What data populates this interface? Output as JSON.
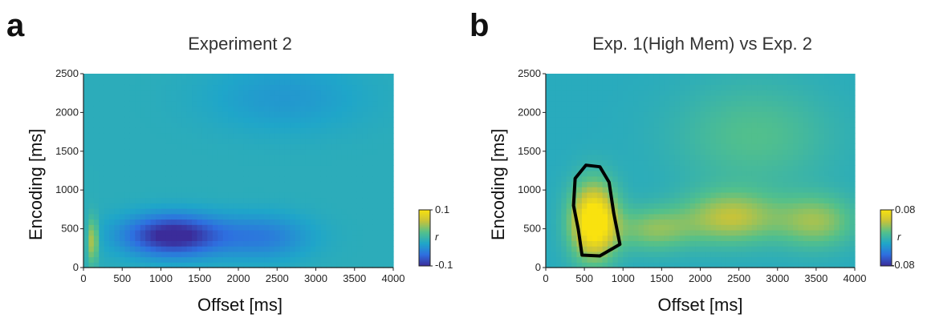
{
  "panels": [
    {
      "letter": "a",
      "title": "Experiment 2",
      "xlabel": "Offset [ms]",
      "ylabel": "Encoding [ms]",
      "colorbar": {
        "label": "r",
        "max": "0.1",
        "min": "-0.1"
      }
    },
    {
      "letter": "b",
      "title": "Exp. 1(High Mem) vs Exp. 2",
      "xlabel": "Offset [ms]",
      "ylabel": "Encoding [ms]",
      "colorbar": {
        "label": "r",
        "max": "0.08",
        "min": "-0.08"
      }
    }
  ],
  "chart_data": [
    {
      "type": "heatmap",
      "title": "Experiment 2",
      "xlabel": "Offset [ms]",
      "ylabel": "Encoding [ms]",
      "x_ticks": [
        0,
        500,
        1000,
        1500,
        2000,
        2500,
        3000,
        3500,
        4000
      ],
      "y_ticks": [
        0,
        500,
        1000,
        1500,
        2000,
        2500
      ],
      "xlim": [
        0,
        4000
      ],
      "ylim": [
        0,
        2500
      ],
      "color_range": [
        -0.1,
        0.1
      ],
      "colorbar_label": "r",
      "colormap": [
        "#3b2c9a",
        "#2e6fe0",
        "#1fa6c9",
        "#53c08b",
        "#c7c33a",
        "#f9e20f"
      ],
      "background_value": -0.01,
      "blobs": [
        {
          "x": 1150,
          "y": 420,
          "sx": 550,
          "sy": 230,
          "value": -0.11
        },
        {
          "x": 2300,
          "y": 400,
          "sx": 550,
          "sy": 250,
          "value": -0.05
        },
        {
          "x": 120,
          "y": 350,
          "sx": 60,
          "sy": 250,
          "value": 0.06
        },
        {
          "x": 2600,
          "y": 2200,
          "sx": 900,
          "sy": 400,
          "value": -0.03
        }
      ]
    },
    {
      "type": "heatmap",
      "title": "Exp. 1(High Mem) vs Exp. 2",
      "xlabel": "Offset [ms]",
      "ylabel": "Encoding [ms]",
      "x_ticks": [
        0,
        500,
        1000,
        1500,
        2000,
        2500,
        3000,
        3500,
        4000
      ],
      "y_ticks": [
        0,
        500,
        1000,
        1500,
        2000,
        2500
      ],
      "xlim": [
        0,
        4000
      ],
      "ylim": [
        0,
        2500
      ],
      "color_range": [
        -0.08,
        0.08
      ],
      "colorbar_label": "r",
      "colormap": [
        "#3b2c9a",
        "#2e6fe0",
        "#1fa6c9",
        "#53c08b",
        "#c7c33a",
        "#f9e20f"
      ],
      "background_value": -0.01,
      "blobs": [
        {
          "x": 620,
          "y": 600,
          "sx": 260,
          "sy": 420,
          "value": 0.1
        },
        {
          "x": 1400,
          "y": 500,
          "sx": 450,
          "sy": 250,
          "value": 0.03
        },
        {
          "x": 2400,
          "y": 650,
          "sx": 550,
          "sy": 300,
          "value": 0.045
        },
        {
          "x": 3500,
          "y": 600,
          "sx": 450,
          "sy": 300,
          "value": 0.035
        },
        {
          "x": 2700,
          "y": 1700,
          "sx": 900,
          "sy": 600,
          "value": 0.015
        }
      ],
      "significant_cluster": [
        [
          380,
          1150
        ],
        [
          520,
          1320
        ],
        [
          700,
          1300
        ],
        [
          820,
          1100
        ],
        [
          880,
          700
        ],
        [
          960,
          300
        ],
        [
          700,
          150
        ],
        [
          470,
          160
        ],
        [
          420,
          500
        ],
        [
          360,
          800
        ],
        [
          380,
          1150
        ]
      ]
    }
  ]
}
